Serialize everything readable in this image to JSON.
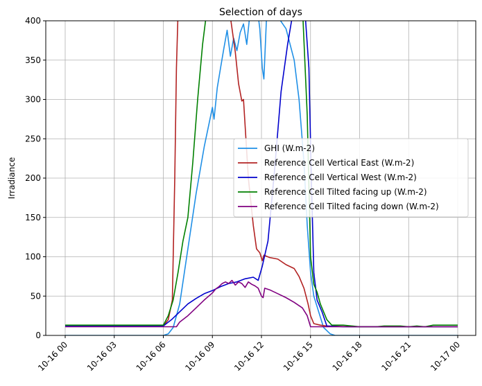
{
  "chart_data": {
    "type": "line",
    "title": "Selection of days",
    "xlabel": "",
    "ylabel": "Irradiance",
    "xlim": [
      "10-16 00",
      "10-17 00"
    ],
    "ylim": [
      0,
      400
    ],
    "grid": true,
    "legend_position": "center-right",
    "x_ticks": [
      "10-16 00",
      "10-16 03",
      "10-16 06",
      "10-16 09",
      "10-16 12",
      "10-16 15",
      "10-16 18",
      "10-16 21",
      "10-17 00"
    ],
    "y_ticks": [
      "0",
      "50",
      "100",
      "150",
      "200",
      "250",
      "300",
      "350",
      "400"
    ],
    "series": [
      {
        "name": "GHI (W.m-2)",
        "color": "#1f8fe6",
        "points": [
          [
            0,
            0
          ],
          [
            6,
            0
          ],
          [
            6.3,
            2
          ],
          [
            6.6,
            10
          ],
          [
            7,
            40
          ],
          [
            7.5,
            110
          ],
          [
            8,
            180
          ],
          [
            8.5,
            240
          ],
          [
            9,
            290
          ],
          [
            9.1,
            275
          ],
          [
            9.3,
            315
          ],
          [
            9.5,
            340
          ],
          [
            9.7,
            365
          ],
          [
            9.9,
            388
          ],
          [
            10.1,
            355
          ],
          [
            10.3,
            378
          ],
          [
            10.5,
            362
          ],
          [
            10.7,
            385
          ],
          [
            10.9,
            396
          ],
          [
            11.1,
            370
          ],
          [
            11.3,
            410
          ],
          [
            11.6,
            440
          ],
          [
            11.9,
            390
          ],
          [
            12.05,
            340
          ],
          [
            12.15,
            326
          ],
          [
            12.3,
            400
          ],
          [
            12.6,
            410
          ],
          [
            13,
            405
          ],
          [
            13.5,
            390
          ],
          [
            14,
            350
          ],
          [
            14.3,
            300
          ],
          [
            14.6,
            220
          ],
          [
            14.8,
            140
          ],
          [
            15,
            80
          ],
          [
            15.2,
            50
          ],
          [
            15.5,
            30
          ],
          [
            15.8,
            10
          ],
          [
            16.2,
            2
          ],
          [
            16.5,
            0
          ],
          [
            24,
            0
          ]
        ]
      },
      {
        "name": "Reference Cell Vertical East (W.m-2)",
        "color": "#b22222",
        "points": [
          [
            0,
            12
          ],
          [
            6,
            12
          ],
          [
            6.3,
            20
          ],
          [
            6.55,
            45
          ],
          [
            6.7,
            200
          ],
          [
            6.8,
            340
          ],
          [
            6.9,
            410
          ],
          [
            7.5,
            430
          ],
          [
            10,
            420
          ],
          [
            10.4,
            360
          ],
          [
            10.6,
            320
          ],
          [
            10.8,
            298
          ],
          [
            10.9,
            300
          ],
          [
            11.2,
            200
          ],
          [
            11.5,
            140
          ],
          [
            11.7,
            110
          ],
          [
            11.9,
            105
          ],
          [
            12.05,
            95
          ],
          [
            12.15,
            102
          ],
          [
            12.5,
            99
          ],
          [
            13,
            97
          ],
          [
            13.5,
            90
          ],
          [
            14,
            85
          ],
          [
            14.3,
            75
          ],
          [
            14.6,
            60
          ],
          [
            14.85,
            40
          ],
          [
            15,
            25
          ],
          [
            15.2,
            15
          ],
          [
            15.6,
            13
          ],
          [
            16,
            12
          ],
          [
            17.5,
            11
          ],
          [
            18,
            11
          ],
          [
            24,
            11
          ]
        ]
      },
      {
        "name": "Reference Cell Vertical West (W.m-2)",
        "color": "#0000cd",
        "points": [
          [
            0,
            12
          ],
          [
            6,
            12
          ],
          [
            6.5,
            20
          ],
          [
            7,
            30
          ],
          [
            7.5,
            40
          ],
          [
            8,
            47
          ],
          [
            8.5,
            53
          ],
          [
            9,
            57
          ],
          [
            9.5,
            62
          ],
          [
            10,
            66
          ],
          [
            10.5,
            68
          ],
          [
            11,
            72
          ],
          [
            11.5,
            74
          ],
          [
            11.8,
            70
          ],
          [
            12.05,
            88
          ],
          [
            12.4,
            120
          ],
          [
            12.8,
            210
          ],
          [
            13.2,
            310
          ],
          [
            13.6,
            370
          ],
          [
            14,
            420
          ],
          [
            14.6,
            430
          ],
          [
            14.9,
            340
          ],
          [
            15.05,
            200
          ],
          [
            15.2,
            80
          ],
          [
            15.4,
            45
          ],
          [
            15.7,
            30
          ],
          [
            16,
            12
          ],
          [
            17,
            11
          ],
          [
            24,
            11
          ]
        ]
      },
      {
        "name": "Reference Cell Tilted facing up (W.m-2)",
        "color": "#008000",
        "points": [
          [
            0,
            13
          ],
          [
            6,
            13
          ],
          [
            6.3,
            25
          ],
          [
            6.6,
            45
          ],
          [
            6.9,
            80
          ],
          [
            7.2,
            120
          ],
          [
            7.5,
            150
          ],
          [
            7.8,
            220
          ],
          [
            8.1,
            300
          ],
          [
            8.4,
            370
          ],
          [
            8.7,
            420
          ],
          [
            14.5,
            420
          ],
          [
            14.8,
            280
          ],
          [
            15,
            100
          ],
          [
            15.2,
            65
          ],
          [
            15.4,
            55
          ],
          [
            15.6,
            40
          ],
          [
            16,
            20
          ],
          [
            16.3,
            13
          ],
          [
            17,
            13
          ],
          [
            18,
            11
          ],
          [
            19,
            11
          ],
          [
            19.5,
            12
          ],
          [
            20.5,
            12
          ],
          [
            21,
            11
          ],
          [
            21.5,
            12
          ],
          [
            22,
            11
          ],
          [
            22.5,
            13
          ],
          [
            24,
            13
          ]
        ]
      },
      {
        "name": "Reference Cell Tilted facing down (W.m-2)",
        "color": "#800080",
        "points": [
          [
            0,
            11
          ],
          [
            6.8,
            11
          ],
          [
            7,
            17
          ],
          [
            7.5,
            25
          ],
          [
            8,
            35
          ],
          [
            8.5,
            45
          ],
          [
            9,
            54
          ],
          [
            9.2,
            59
          ],
          [
            9.4,
            62
          ],
          [
            9.6,
            66
          ],
          [
            9.8,
            68
          ],
          [
            10,
            66
          ],
          [
            10.2,
            70
          ],
          [
            10.4,
            64
          ],
          [
            10.6,
            68
          ],
          [
            10.8,
            66
          ],
          [
            11,
            61
          ],
          [
            11.2,
            68
          ],
          [
            11.4,
            65
          ],
          [
            11.6,
            63
          ],
          [
            11.8,
            60
          ],
          [
            12,
            50
          ],
          [
            12.1,
            48
          ],
          [
            12.2,
            60
          ],
          [
            12.5,
            58
          ],
          [
            13,
            53
          ],
          [
            13.5,
            48
          ],
          [
            14,
            42
          ],
          [
            14.5,
            35
          ],
          [
            14.8,
            25
          ],
          [
            15,
            11
          ],
          [
            16,
            11
          ],
          [
            24,
            11
          ]
        ]
      }
    ]
  }
}
